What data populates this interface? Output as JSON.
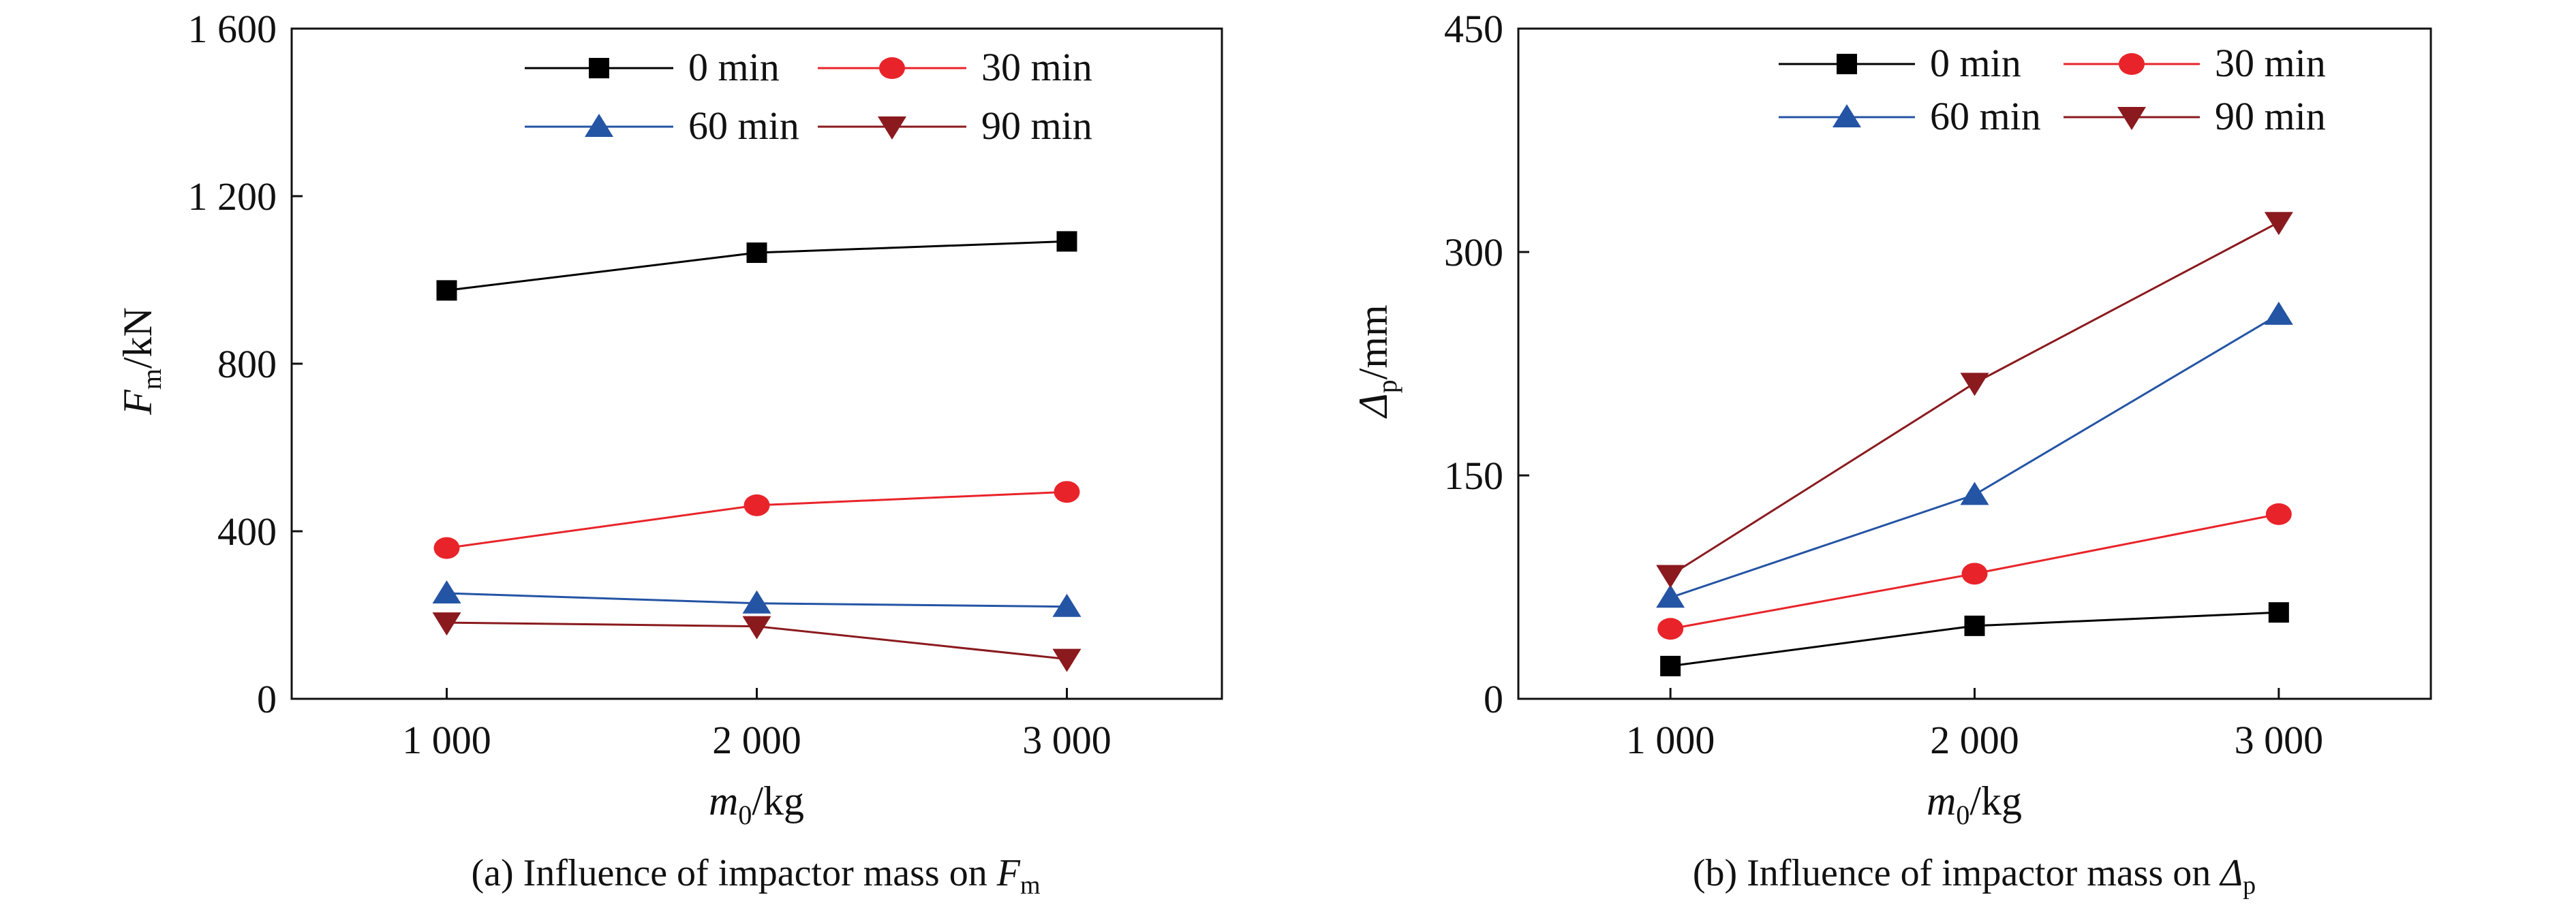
{
  "chart_data": [
    {
      "id": "a",
      "type": "line",
      "x": [
        "1 000",
        "2 000",
        "3 000"
      ],
      "xvals": [
        1000,
        2000,
        3000
      ],
      "xlim": [
        500,
        3500
      ],
      "ylim": [
        0,
        1600
      ],
      "yticks": [
        "0",
        "400",
        "800",
        "1 200",
        "1 600"
      ],
      "ytick_vals": [
        0,
        400,
        800,
        1200,
        1600
      ],
      "xlabel": {
        "main": "m",
        "sub": "0",
        "unit": "/kg"
      },
      "ylabel": {
        "main": "F",
        "sub": "m",
        "unit": "/kN"
      },
      "caption": {
        "prefix": "(a) Influence of impactor mass on ",
        "sym": "F",
        "sub": "m"
      },
      "legend_placement": "top-right",
      "grid": false,
      "series": [
        {
          "name": "0 min",
          "color": "#000000",
          "marker": "square",
          "values": [
            975,
            1065,
            1092
          ]
        },
        {
          "name": "30 min",
          "color": "#e8242a",
          "marker": "circle",
          "values": [
            360,
            462,
            494
          ]
        },
        {
          "name": "60 min",
          "color": "#2454a4",
          "marker": "triangle-up",
          "values": [
            252,
            228,
            220
          ]
        },
        {
          "name": "90 min",
          "color": "#8a1a1e",
          "marker": "triangle-down",
          "values": [
            182,
            173,
            95
          ]
        }
      ]
    },
    {
      "id": "b",
      "type": "line",
      "x": [
        "1 000",
        "2 000",
        "3 000"
      ],
      "xvals": [
        1000,
        2000,
        3000
      ],
      "xlim": [
        500,
        3500
      ],
      "ylim": [
        0,
        450
      ],
      "yticks": [
        "0",
        "150",
        "300",
        "450"
      ],
      "ytick_vals": [
        0,
        150,
        300,
        450
      ],
      "xlabel": {
        "main": "m",
        "sub": "0",
        "unit": "/kg"
      },
      "ylabel": {
        "main": "Δ",
        "sub": "p",
        "unit": "/mm"
      },
      "caption": {
        "prefix": "(b) Influence of impactor mass on ",
        "sym": "Δ",
        "sub": "p"
      },
      "legend_placement": "top-left",
      "grid": false,
      "series": [
        {
          "name": "0 min",
          "color": "#000000",
          "marker": "square",
          "values": [
            22,
            49,
            58
          ]
        },
        {
          "name": "30 min",
          "color": "#e8242a",
          "marker": "circle",
          "values": [
            47,
            84,
            124
          ]
        },
        {
          "name": "60 min",
          "color": "#2454a4",
          "marker": "triangle-up",
          "values": [
            68,
            137,
            258
          ]
        },
        {
          "name": "90 min",
          "color": "#8a1a1e",
          "marker": "triangle-down",
          "values": [
            83,
            212,
            320
          ]
        }
      ]
    }
  ]
}
